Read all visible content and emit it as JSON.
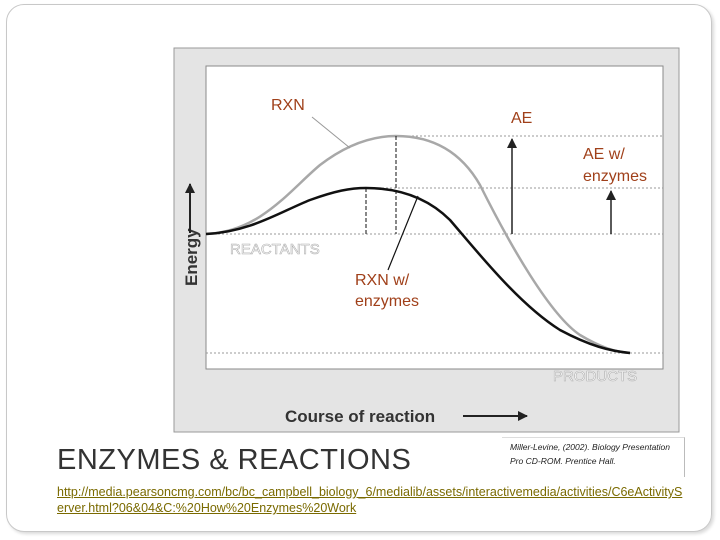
{
  "diagram": {
    "labels": {
      "rxn": "RXN",
      "ae": "AE",
      "ae_enzymes_line1": "AE w/",
      "ae_enzymes_line2": "enzymes",
      "reactants": "REACTANTS",
      "rxn_enzymes_line1": "RXN  w/",
      "rxn_enzymes_line2": "enzymes",
      "products": "PRODUCTS"
    },
    "axes": {
      "y_label": "Energy",
      "x_label": "Course of reaction"
    },
    "colors": {
      "annotation": "#a0401a",
      "overlay_text": "#ffffff",
      "uncatalyzed_curve": "#a8a8a8",
      "catalyzed_curve": "#111111",
      "panel_bg": "#e4e4e4",
      "plot_bg": "#ffffff"
    }
  },
  "slide": {
    "title": "ENZYMES & REACTIONS",
    "link": "http://media.pearsoncmg.com/bc/bc_campbell_biology_6/medialib/assets/interactivemedia/activities/C6eActivityServer.html?06&04&C:%20How%20Enzymes%20Work",
    "credit_line1": "Miller-Levine, (2002). Biology Presentation",
    "credit_line2": "Pro CD-ROM. Prentice Hall."
  }
}
